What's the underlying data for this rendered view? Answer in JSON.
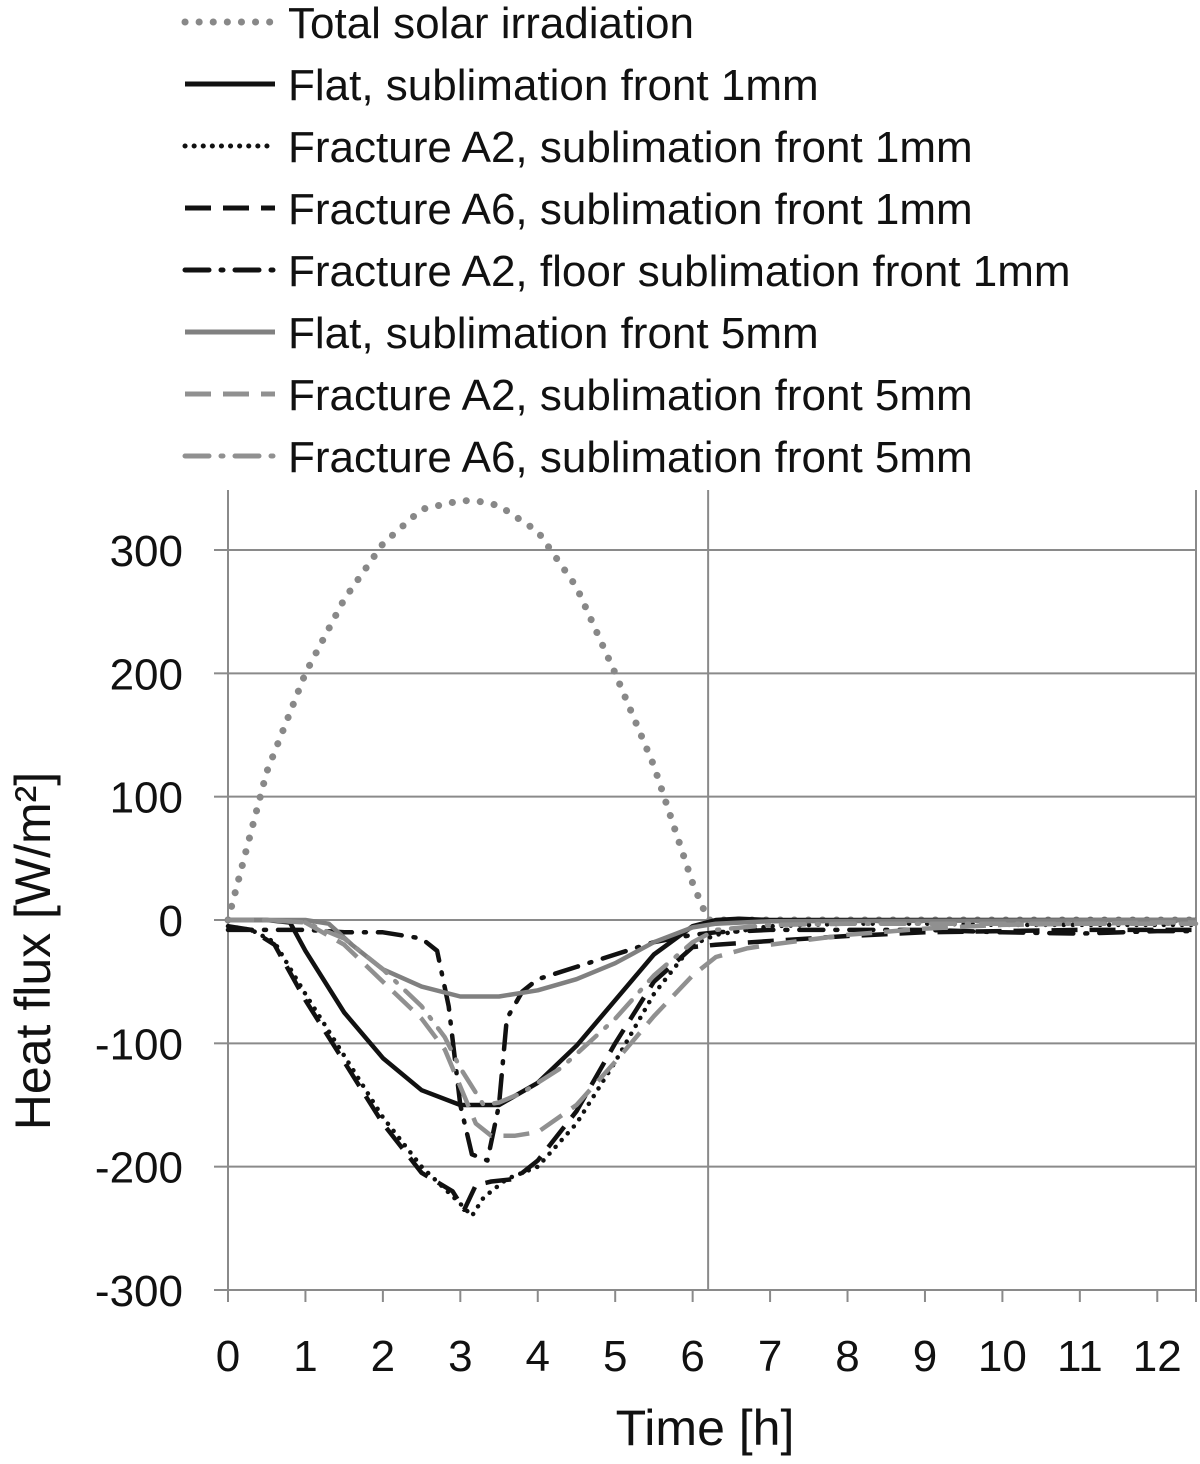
{
  "chart_data": {
    "type": "line",
    "xlabel": "Time [h]",
    "ylabel": "Heat flux [W/m²]",
    "xlim": [
      0,
      12.5
    ],
    "ylim": [
      -300,
      340
    ],
    "x_ticks": [
      0,
      1,
      2,
      3,
      4,
      5,
      6,
      7,
      8,
      9,
      10,
      11,
      12
    ],
    "y_ticks": [
      300,
      200,
      100,
      0,
      -100,
      -200,
      -300
    ],
    "x_tick_labels": [
      "0",
      "1",
      "2",
      "3",
      "4",
      "5",
      "6",
      "7",
      "8",
      "9",
      "10",
      "11",
      "12"
    ],
    "y_tick_labels": [
      "300",
      "200",
      "100",
      "0",
      "-100",
      "-200",
      "-300"
    ],
    "vertical_gridlines": [
      0,
      6.2,
      12.5
    ],
    "grid": true,
    "legend_position": "top",
    "series": [
      {
        "name": "Total solar irradiation",
        "color": "#888888",
        "style": "dotted",
        "x": [
          0,
          0.5,
          1,
          1.5,
          2,
          2.5,
          3,
          3.2,
          3.5,
          4,
          4.5,
          5,
          5.5,
          6,
          6.2,
          12.5
        ],
        "y": [
          0,
          120,
          200,
          260,
          305,
          333,
          340,
          340,
          336,
          315,
          270,
          200,
          125,
          30,
          0,
          0
        ]
      },
      {
        "name": "Flat, sublimation front 1mm",
        "color": "#111111",
        "style": "solid",
        "x": [
          0,
          0.5,
          0.8,
          1,
          1.5,
          2,
          2.5,
          3,
          3.5,
          4,
          4.5,
          5,
          5.5,
          6,
          6.3,
          6.6,
          7,
          12.5
        ],
        "y": [
          0,
          0,
          -2,
          -25,
          -75,
          -112,
          -138,
          -150,
          -150,
          -132,
          -102,
          -65,
          -28,
          -5,
          0,
          1,
          0,
          0
        ]
      },
      {
        "name": "Fracture A2, sublimation front 1mm",
        "color": "#111111",
        "style": "dotted",
        "x": [
          0,
          0.3,
          0.6,
          1,
          1.5,
          2,
          2.5,
          3,
          3.15,
          3.3,
          3.6,
          4,
          4.5,
          5,
          5.5,
          6,
          6.3,
          7,
          8,
          9,
          10,
          11,
          12,
          12.5
        ],
        "y": [
          -5,
          -8,
          -18,
          -60,
          -110,
          -160,
          -200,
          -230,
          -240,
          -225,
          -210,
          -200,
          -165,
          -115,
          -60,
          -20,
          -12,
          -5,
          -3,
          -3,
          -4,
          -4,
          -4,
          -4
        ]
      },
      {
        "name": "Fracture A6, sublimation front 1mm",
        "color": "#111111",
        "style": "dashed",
        "x": [
          0,
          0.3,
          0.6,
          1,
          1.5,
          2,
          2.5,
          2.9,
          3.05,
          3.2,
          3.4,
          3.7,
          4,
          4.5,
          5,
          5.5,
          6,
          6.3,
          7,
          8,
          9,
          10,
          11,
          12,
          12.5
        ],
        "y": [
          -5,
          -8,
          -20,
          -65,
          -115,
          -165,
          -205,
          -220,
          -235,
          -215,
          -212,
          -210,
          -195,
          -155,
          -100,
          -50,
          -22,
          -20,
          -17,
          -13,
          -10,
          -9,
          -8,
          -8,
          -8
        ]
      },
      {
        "name": "Fracture A2, floor sublimation front 1mm",
        "color": "#111111",
        "style": "dashdot",
        "x": [
          0,
          0.5,
          1,
          1.5,
          2,
          2.5,
          2.7,
          2.85,
          3,
          3.15,
          3.35,
          3.5,
          3.6,
          3.8,
          4,
          4.5,
          5,
          5.5,
          6,
          6.3,
          7,
          8,
          9,
          10,
          11,
          12,
          12.5
        ],
        "y": [
          -8,
          -8,
          -8,
          -10,
          -10,
          -15,
          -25,
          -70,
          -150,
          -190,
          -195,
          -150,
          -80,
          -58,
          -48,
          -38,
          -28,
          -18,
          -12,
          -10,
          -8,
          -8,
          -8,
          -10,
          -11,
          -9,
          -9
        ]
      },
      {
        "name": "Flat, sublimation front 5mm",
        "color": "#808080",
        "style": "solid",
        "x": [
          0,
          0.5,
          1,
          1.3,
          1.6,
          2,
          2.5,
          3,
          3.5,
          4,
          4.5,
          5,
          5.5,
          6,
          6.3,
          7,
          12.5
        ],
        "y": [
          0,
          0,
          0,
          -3,
          -20,
          -40,
          -54,
          -62,
          -62,
          -57,
          -48,
          -35,
          -18,
          -6,
          -3,
          -1,
          0
        ]
      },
      {
        "name": "Fracture A2, sublimation front 5mm",
        "color": "#909090",
        "style": "dashed",
        "x": [
          0,
          0.5,
          1,
          1.5,
          2,
          2.5,
          2.8,
          3,
          3.2,
          3.4,
          3.7,
          4,
          4.5,
          5,
          5.5,
          6,
          6.3,
          6.7,
          7,
          8,
          9,
          10,
          11,
          12,
          12.5
        ],
        "y": [
          0,
          0,
          -2,
          -20,
          -50,
          -80,
          -105,
          -135,
          -165,
          -175,
          -175,
          -172,
          -150,
          -115,
          -78,
          -45,
          -30,
          -23,
          -20,
          -12,
          -7,
          -4,
          -3,
          -2,
          -2
        ]
      },
      {
        "name": "Fracture A6, sublimation front 5mm",
        "color": "#909090",
        "style": "dashdot",
        "x": [
          0,
          0.5,
          1,
          1.5,
          2,
          2.5,
          2.8,
          3,
          3.3,
          3.5,
          3.8,
          4.3,
          5,
          5.5,
          6,
          6.3,
          7,
          8,
          9,
          10,
          11,
          12,
          12.5
        ],
        "y": [
          0,
          0,
          -2,
          -15,
          -40,
          -70,
          -95,
          -120,
          -150,
          -148,
          -140,
          -120,
          -80,
          -45,
          -18,
          -8,
          -4,
          -3,
          -3,
          -3,
          -3,
          -3,
          -3
        ]
      }
    ]
  }
}
